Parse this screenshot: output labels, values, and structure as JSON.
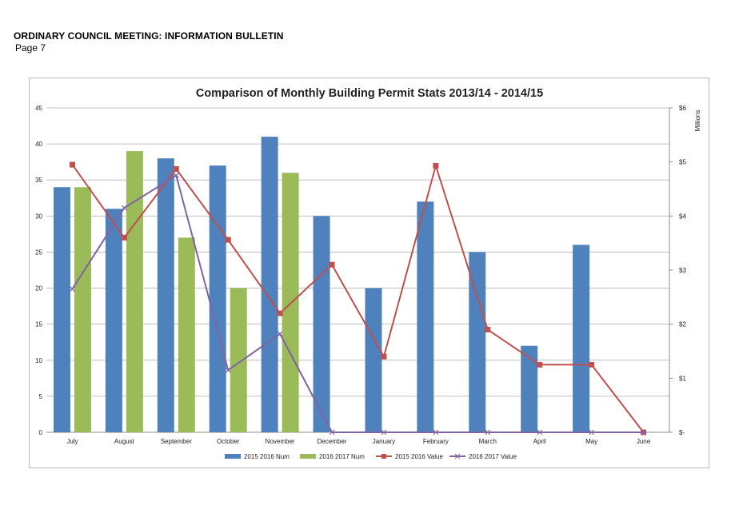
{
  "document": {
    "heading": "ORDINARY COUNCIL MEETING: INFORMATION BULLETIN",
    "page_label": "Page 7"
  },
  "chart_data": {
    "type": "bar",
    "title": "Comparison of Monthly Building Permit Stats 2013/14 - 2014/15",
    "categories": [
      "July",
      "August",
      "September",
      "October",
      "November",
      "December",
      "January",
      "February",
      "March",
      "April",
      "May",
      "June"
    ],
    "y_left": {
      "ylim": [
        0,
        45
      ],
      "ticks": [
        0,
        5,
        10,
        15,
        20,
        25,
        30,
        35,
        40,
        45
      ]
    },
    "y_right": {
      "label": "Millions",
      "ylim": [
        0,
        6
      ],
      "ticks": [
        0,
        1,
        2,
        3,
        4,
        5,
        6
      ],
      "tick_labels": [
        "$-",
        "$1",
        "$2",
        "$3",
        "$4",
        "$5",
        "$6"
      ]
    },
    "grid": true,
    "legend_position": "bottom",
    "series": [
      {
        "name": "2015 2016 Num",
        "kind": "bar",
        "axis": "left",
        "color": "#4f81bd",
        "values": [
          34,
          31,
          38,
          37,
          41,
          30,
          20,
          32,
          25,
          12,
          26,
          null
        ]
      },
      {
        "name": "2016 2017 Num",
        "kind": "bar",
        "axis": "left",
        "color": "#9bbb59",
        "values": [
          34,
          39,
          27,
          20,
          36,
          null,
          null,
          null,
          null,
          null,
          null,
          null
        ]
      },
      {
        "name": "2015 2016 Value",
        "kind": "line",
        "axis": "right",
        "color": "#c0504d",
        "marker": "square",
        "values": [
          4.95,
          3.6,
          4.87,
          3.56,
          2.2,
          3.1,
          1.4,
          4.93,
          1.9,
          1.25,
          1.25,
          0
        ]
      },
      {
        "name": "2016 2017 Value",
        "kind": "line",
        "axis": "right",
        "color": "#8064a2",
        "marker": "x",
        "values": [
          2.65,
          4.15,
          4.75,
          1.15,
          1.82,
          0,
          0,
          0,
          0,
          0,
          0,
          0
        ]
      }
    ]
  }
}
